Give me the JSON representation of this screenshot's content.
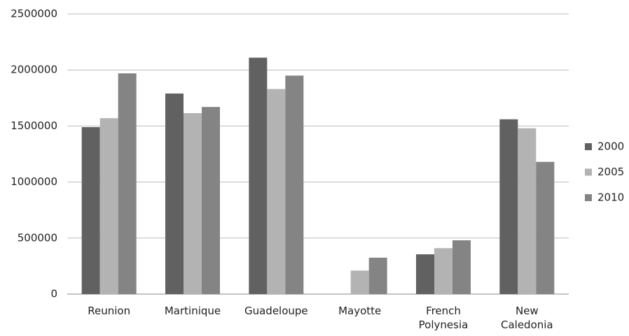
{
  "chart_data": {
    "type": "bar",
    "categories": [
      "Reunion",
      "Martinique",
      "Guadeloupe",
      "Mayotte",
      "French Polynesia",
      "New Caledonia"
    ],
    "series": [
      {
        "name": "2000",
        "color": "#616161",
        "values": [
          1490000,
          1790000,
          2110000,
          null,
          355000,
          1560000
        ]
      },
      {
        "name": "2005",
        "color": "#b3b3b3",
        "values": [
          1570000,
          1615000,
          1830000,
          210000,
          410000,
          1480000
        ]
      },
      {
        "name": "2010",
        "color": "#848484",
        "values": [
          1970000,
          1670000,
          1950000,
          325000,
          480000,
          1180000
        ]
      }
    ],
    "ylim": [
      0,
      2500000
    ],
    "yticks": [
      0,
      500000,
      1000000,
      1500000,
      2000000,
      2500000
    ],
    "grid": true,
    "legend": "right"
  }
}
